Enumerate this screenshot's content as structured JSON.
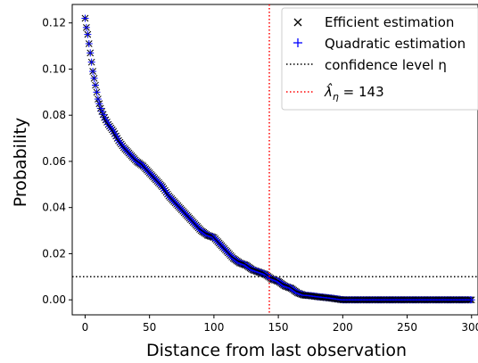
{
  "chart_data": {
    "type": "scatter",
    "xlabel": "Distance from last observation",
    "ylabel": "Probability",
    "xlim": [
      -10,
      305
    ],
    "ylim": [
      -0.0065,
      0.128
    ],
    "xticks": [
      0,
      50,
      100,
      150,
      200,
      250,
      300
    ],
    "xtick_labels": [
      "0",
      "50",
      "100",
      "150",
      "200",
      "250",
      "300"
    ],
    "yticks": [
      0.0,
      0.02,
      0.04,
      0.06,
      0.08,
      0.1,
      0.12
    ],
    "ytick_labels": [
      "0.00",
      "0.02",
      "0.04",
      "0.06",
      "0.08",
      "0.10",
      "0.12"
    ],
    "grid": false,
    "legend_position": "top-right",
    "curve_knots": [
      {
        "x": 0,
        "y": 0.122
      },
      {
        "x": 1,
        "y": 0.118
      },
      {
        "x": 2,
        "y": 0.115
      },
      {
        "x": 3,
        "y": 0.111
      },
      {
        "x": 4,
        "y": 0.107
      },
      {
        "x": 5,
        "y": 0.103
      },
      {
        "x": 6,
        "y": 0.099
      },
      {
        "x": 7,
        "y": 0.096
      },
      {
        "x": 8,
        "y": 0.093
      },
      {
        "x": 9,
        "y": 0.09
      },
      {
        "x": 10,
        "y": 0.087
      },
      {
        "x": 12,
        "y": 0.083
      },
      {
        "x": 15,
        "y": 0.079
      },
      {
        "x": 18,
        "y": 0.076
      },
      {
        "x": 22,
        "y": 0.073
      },
      {
        "x": 26,
        "y": 0.069
      },
      {
        "x": 30,
        "y": 0.066
      },
      {
        "x": 35,
        "y": 0.063
      },
      {
        "x": 40,
        "y": 0.06
      },
      {
        "x": 45,
        "y": 0.058
      },
      {
        "x": 50,
        "y": 0.055
      },
      {
        "x": 55,
        "y": 0.052
      },
      {
        "x": 60,
        "y": 0.049
      },
      {
        "x": 65,
        "y": 0.045
      },
      {
        "x": 70,
        "y": 0.042
      },
      {
        "x": 75,
        "y": 0.039
      },
      {
        "x": 80,
        "y": 0.036
      },
      {
        "x": 85,
        "y": 0.033
      },
      {
        "x": 90,
        "y": 0.03
      },
      {
        "x": 95,
        "y": 0.028
      },
      {
        "x": 100,
        "y": 0.027
      },
      {
        "x": 105,
        "y": 0.024
      },
      {
        "x": 110,
        "y": 0.021
      },
      {
        "x": 115,
        "y": 0.018
      },
      {
        "x": 120,
        "y": 0.016
      },
      {
        "x": 125,
        "y": 0.015
      },
      {
        "x": 130,
        "y": 0.013
      },
      {
        "x": 135,
        "y": 0.012
      },
      {
        "x": 140,
        "y": 0.011
      },
      {
        "x": 145,
        "y": 0.009
      },
      {
        "x": 150,
        "y": 0.008
      },
      {
        "x": 155,
        "y": 0.006
      },
      {
        "x": 160,
        "y": 0.005
      },
      {
        "x": 165,
        "y": 0.003
      },
      {
        "x": 170,
        "y": 0.002
      },
      {
        "x": 175,
        "y": 0.0018
      },
      {
        "x": 180,
        "y": 0.0014
      },
      {
        "x": 185,
        "y": 0.0011
      },
      {
        "x": 190,
        "y": 0.0008
      },
      {
        "x": 195,
        "y": 0.0004
      },
      {
        "x": 200,
        "y": 0.0
      },
      {
        "x": 300,
        "y": 0.0
      }
    ],
    "x_range": [
      0,
      300
    ],
    "x_step": 1,
    "series": [
      {
        "name": "Efficient estimation",
        "marker": "x",
        "color": "#000000"
      },
      {
        "name": "Quadratic estimation",
        "marker": "+",
        "color": "#0000ff"
      }
    ],
    "hlines": [
      {
        "name": "confidence level η",
        "y": 0.01,
        "style": "dotted",
        "color": "#000000"
      }
    ],
    "vlines": [
      {
        "label_main": "λ̂",
        "label_sub": "η",
        "label_rest": " = 143",
        "x": 143,
        "style": "dotted",
        "color": "#ff0000"
      }
    ]
  }
}
